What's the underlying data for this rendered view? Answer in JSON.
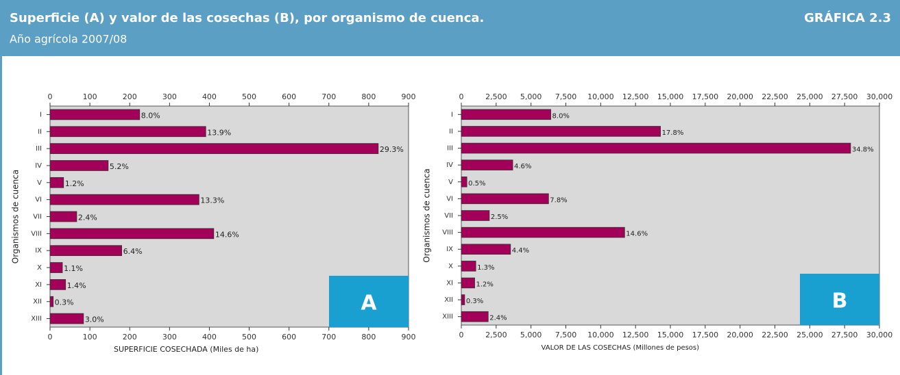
{
  "header": {
    "title": "Superficie (A) y valor de las cosechas (B), por organismo de cuenca.",
    "subtitle": "Año agrícola 2007/08",
    "label": "GRÁFICA 2.3"
  },
  "chart_data": [
    {
      "type": "bar",
      "orientation": "horizontal",
      "panel": "A",
      "ylabel": "Organismos de cuenca",
      "xlabel": "SUPERFICIE COSECHADA (Miles de ha)",
      "categories": [
        "I",
        "II",
        "III",
        "IV",
        "V",
        "VI",
        "VII",
        "VIII",
        "IX",
        "X",
        "XI",
        "XII",
        "XIII"
      ],
      "values": [
        225,
        391,
        824,
        146,
        34,
        374,
        67,
        411,
        180,
        31,
        39,
        8,
        84
      ],
      "share_labels": [
        "8.0%",
        "13.9%",
        "29.3%",
        "5.2%",
        "1.2%",
        "13.3%",
        "2.4%",
        "14.6%",
        "6.4%",
        "1.1%",
        "1.4%",
        "0.3%",
        "3.0%"
      ],
      "color": "#a3005a",
      "panel_color": "#1a9fd1",
      "xlim": [
        0,
        900
      ],
      "xticks": [
        0,
        100,
        200,
        300,
        400,
        500,
        600,
        700,
        800,
        900
      ]
    },
    {
      "type": "bar",
      "orientation": "horizontal",
      "panel": "B",
      "ylabel": "Organismos de cuenca",
      "xlabel": "VALOR DE LAS COSECHAS (Millones de pesos)",
      "categories": [
        "I",
        "II",
        "III",
        "IV",
        "V",
        "VI",
        "VII",
        "VIII",
        "IX",
        "X",
        "XI",
        "XII",
        "XIII"
      ],
      "values": [
        6420,
        14290,
        27930,
        3690,
        400,
        6260,
        2010,
        11720,
        3530,
        1040,
        960,
        240,
        1930
      ],
      "share_labels": [
        "8.0%",
        "17.8%",
        "34.8%",
        "4.6%",
        "0.5%",
        "7.8%",
        "2.5%",
        "14.6%",
        "4.4%",
        "1.3%",
        "1.2%",
        "0.3%",
        "2.4%"
      ],
      "color": "#a3005a",
      "panel_color": "#1a9fd1",
      "xlim": [
        0,
        30000
      ],
      "xticks": [
        0,
        {
          "value": 2500,
          "label": "2,500"
        },
        {
          "value": 5000,
          "label": "5,000"
        },
        {
          "value": 7500,
          "label": "7,500"
        },
        {
          "value": 10000,
          "label": "10,000"
        },
        {
          "value": 12500,
          "label": "12,500"
        },
        {
          "value": 15000,
          "label": "15,000"
        },
        {
          "value": 17500,
          "label": "17,500"
        },
        {
          "value": 20000,
          "label": "20,000"
        },
        {
          "value": 22500,
          "label": "22,500"
        },
        {
          "value": 25000,
          "label": "25,000"
        },
        {
          "value": 27500,
          "label": "27,500"
        },
        {
          "value": 30000,
          "label": "30,000"
        }
      ]
    }
  ]
}
